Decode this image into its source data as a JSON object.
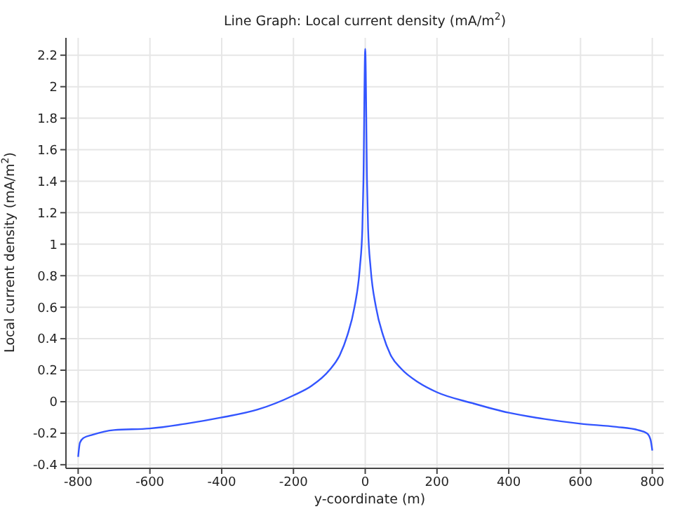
{
  "chart_data": {
    "type": "line",
    "title": "Line Graph: Local current density (mA/m$^{2}$)",
    "xlabel": "y-coordinate (m)",
    "ylabel": "Local current density (mA/m$^{2}$)",
    "x": [
      -800,
      -795,
      -785,
      -760,
      -700,
      -600,
      -500,
      -400,
      -300,
      -200,
      -150,
      -100,
      -70,
      -50,
      -30,
      -15,
      -8,
      -5,
      0,
      5,
      8,
      15,
      30,
      50,
      70,
      100,
      150,
      200,
      300,
      400,
      500,
      600,
      700,
      760,
      785,
      795,
      800
    ],
    "series": [
      {
        "color": "#3355ff",
        "values": [
          -0.35,
          -0.26,
          -0.23,
          -0.21,
          -0.18,
          -0.17,
          -0.14,
          -0.1,
          -0.05,
          0.04,
          0.1,
          0.2,
          0.3,
          0.42,
          0.6,
          0.85,
          1.1,
          1.4,
          2.24,
          1.4,
          1.1,
          0.85,
          0.6,
          0.42,
          0.3,
          0.21,
          0.12,
          0.06,
          -0.01,
          -0.07,
          -0.11,
          -0.14,
          -0.16,
          -0.18,
          -0.2,
          -0.24,
          -0.31
        ]
      }
    ],
    "xlim": [
      -834,
      832
    ],
    "xticks": [
      -800,
      -600,
      -400,
      -200,
      0,
      200,
      400,
      600,
      800
    ],
    "ylim": [
      -0.423,
      2.31
    ],
    "yticks": [
      -0.4,
      -0.2,
      0,
      0.2,
      0.4,
      0.6,
      0.8,
      1,
      1.2,
      1.4,
      1.6,
      1.8,
      2,
      2.2
    ],
    "grid": true,
    "marker": "none",
    "line_style": "solid",
    "legend": false
  }
}
